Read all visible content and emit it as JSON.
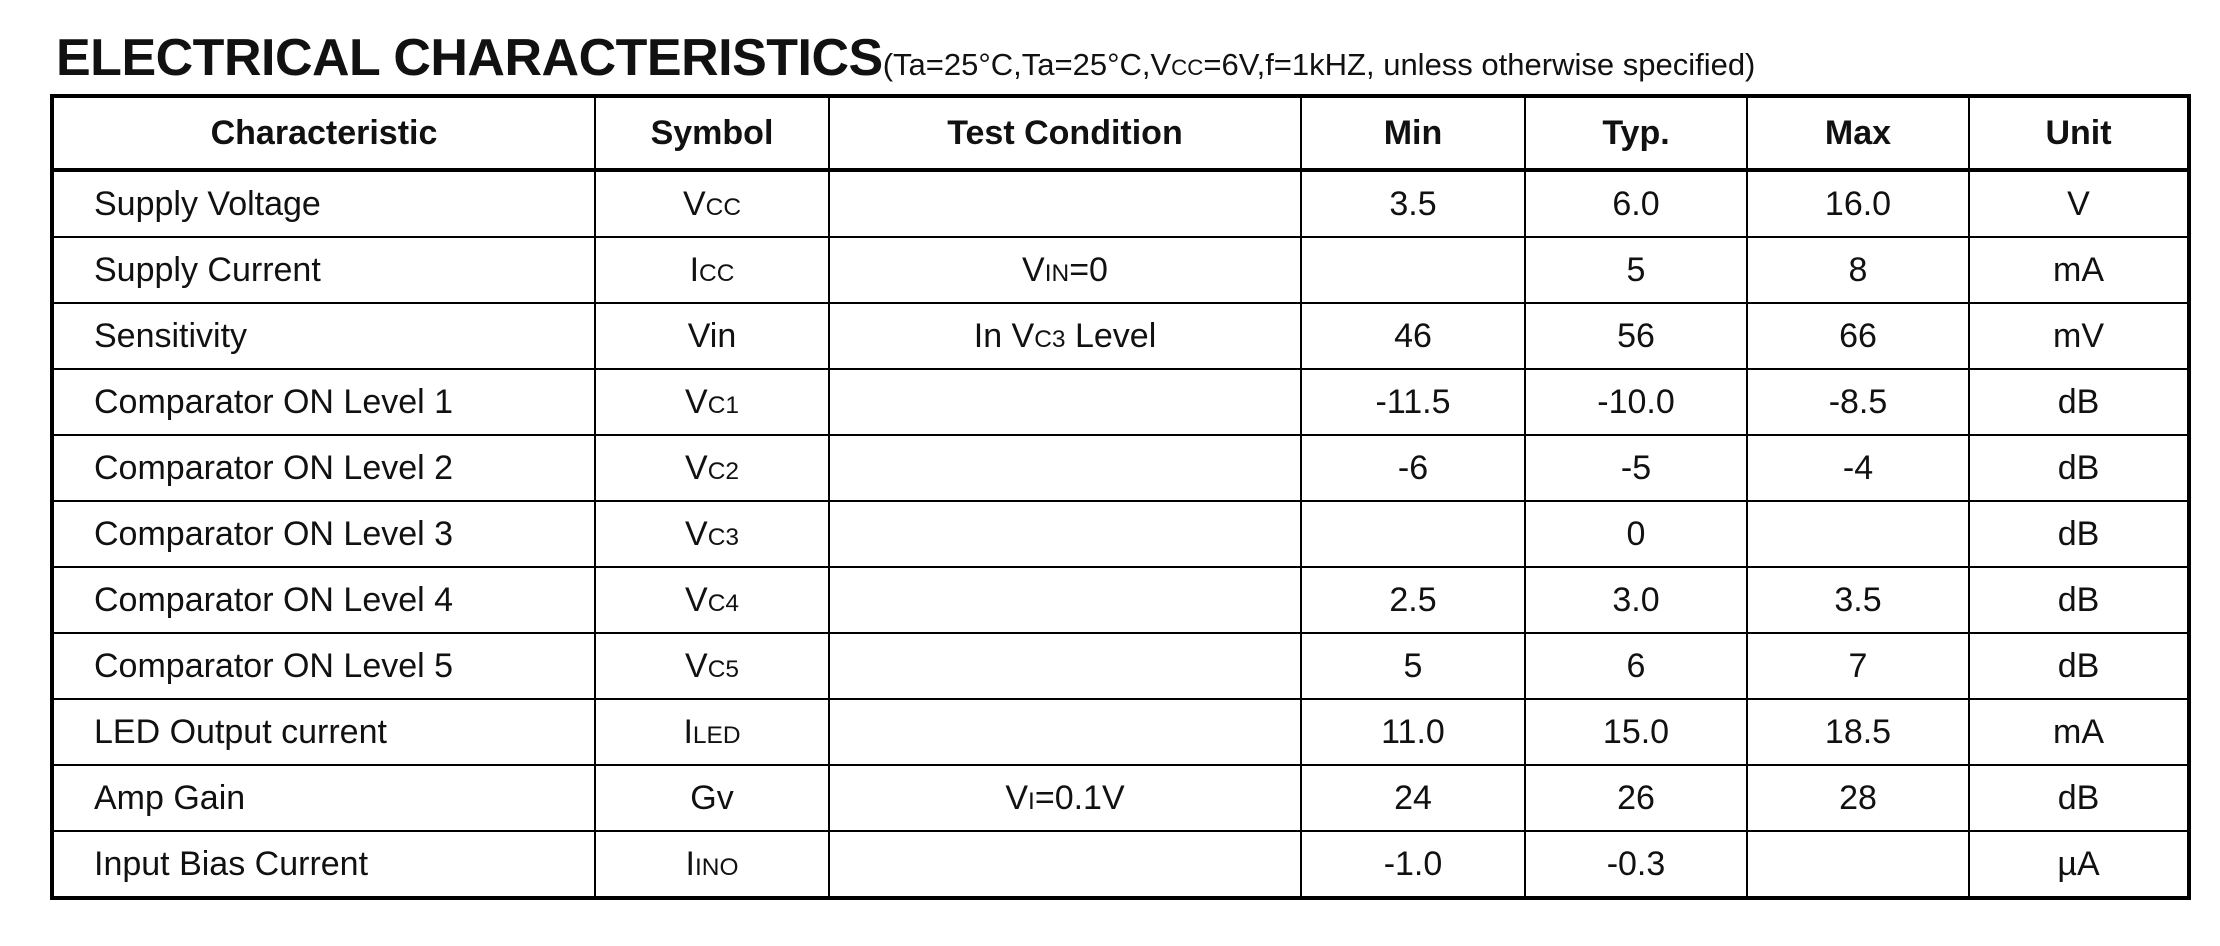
{
  "title": {
    "main": "ELECTRICAL CHARACTERISTICS",
    "conditions": [
      "(Ta=25°C,Ta=25°C,V",
      {
        "sub": "CC"
      },
      "=6V,f=1kHZ, unless otherwise specified)"
    ]
  },
  "table": {
    "columns": [
      "Characteristic",
      "Symbol",
      "Test Condition",
      "Min",
      "Typ.",
      "Max",
      "Unit"
    ],
    "rows": [
      [
        "Supply Voltage",
        [
          "V",
          {
            "sub": "CC"
          }
        ],
        null,
        "3.5",
        "6.0",
        "16.0",
        "V"
      ],
      [
        "Supply Current",
        [
          "I",
          {
            "sub": "CC"
          }
        ],
        [
          "V",
          {
            "sub": "IN"
          },
          "=0"
        ],
        null,
        "5",
        "8",
        "mA"
      ],
      [
        "Sensitivity",
        "Vin",
        [
          "In V",
          {
            "sub": "C3"
          },
          " Level"
        ],
        "46",
        "56",
        "66",
        "mV"
      ],
      [
        "Comparator ON Level 1",
        [
          "V",
          {
            "sub": "C1"
          }
        ],
        null,
        "-11.5",
        "-10.0",
        "-8.5",
        "dB"
      ],
      [
        "Comparator ON Level 2",
        [
          "V",
          {
            "sub": "C2"
          }
        ],
        null,
        "-6",
        "-5",
        "-4",
        "dB"
      ],
      [
        "Comparator ON Level 3",
        [
          "V",
          {
            "sub": "C3"
          }
        ],
        null,
        null,
        "0",
        null,
        "dB"
      ],
      [
        "Comparator ON Level 4",
        [
          "V",
          {
            "sub": "C4"
          }
        ],
        null,
        "2.5",
        "3.0",
        "3.5",
        "dB"
      ],
      [
        "Comparator ON Level 5",
        [
          "V",
          {
            "sub": "C5"
          }
        ],
        null,
        "5",
        "6",
        "7",
        "dB"
      ],
      [
        "LED Output current",
        [
          "I",
          {
            "sub": "LED"
          }
        ],
        null,
        "11.0",
        "15.0",
        "18.5",
        "mA"
      ],
      [
        "Amp Gain",
        "Gv",
        [
          "V",
          {
            "sub": "I"
          },
          "=0.1V"
        ],
        "24",
        "26",
        "28",
        "dB"
      ],
      [
        "Input Bias Current",
        [
          "I",
          {
            "sub": "INO"
          }
        ],
        null,
        "-1.0",
        "-0.3",
        null,
        "µA"
      ]
    ]
  }
}
